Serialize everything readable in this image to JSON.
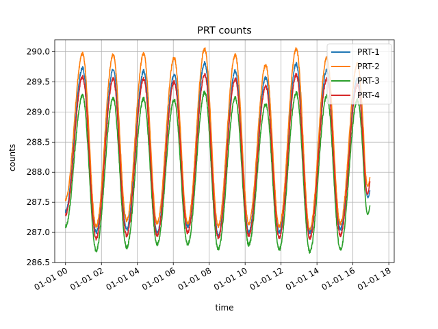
{
  "chart_data": {
    "type": "line",
    "title": "PRT counts",
    "xlabel": "time",
    "ylabel": "counts",
    "xlim_hours": [
      -0.6,
      18.3
    ],
    "ylim": [
      286.5,
      290.2
    ],
    "x_ticks": [
      {
        "hour": 0,
        "label": "01-01 00"
      },
      {
        "hour": 2,
        "label": "01-01 02"
      },
      {
        "hour": 4,
        "label": "01-01 04"
      },
      {
        "hour": 6,
        "label": "01-01 06"
      },
      {
        "hour": 8,
        "label": "01-01 08"
      },
      {
        "hour": 10,
        "label": "01-01 10"
      },
      {
        "hour": 12,
        "label": "01-01 12"
      },
      {
        "hour": 14,
        "label": "01-01 14"
      },
      {
        "hour": 16,
        "label": "01-01 16"
      },
      {
        "hour": 18,
        "label": "01-01 18"
      }
    ],
    "y_ticks": [
      {
        "value": 286.5,
        "label": "286.5"
      },
      {
        "value": 287.0,
        "label": "287.0"
      },
      {
        "value": 287.5,
        "label": "287.5"
      },
      {
        "value": 288.0,
        "label": "288.0"
      },
      {
        "value": 288.5,
        "label": "288.5"
      },
      {
        "value": 289.0,
        "label": "289.0"
      },
      {
        "value": 289.5,
        "label": "289.5"
      },
      {
        "value": 290.0,
        "label": "290.0"
      }
    ],
    "grid": true,
    "legend_position": "top-right",
    "cycle_period_hours": 1.7,
    "series": [
      {
        "name": "PRT-1",
        "color": "#1f77b4",
        "peaks": [
          289.73,
          289.7,
          289.68,
          289.62,
          289.82,
          289.68,
          289.57,
          289.8,
          289.7,
          289.55
        ],
        "troughs": [
          287.35,
          287.0,
          287.05,
          287.0,
          287.1,
          286.95,
          287.0,
          287.0,
          287.0,
          287.05
        ],
        "end": 287.7
      },
      {
        "name": "PRT-2",
        "color": "#ff7f0e",
        "peaks": [
          289.97,
          289.95,
          289.97,
          289.9,
          290.05,
          289.95,
          289.78,
          290.05,
          289.9,
          289.8
        ],
        "troughs": [
          287.55,
          287.1,
          287.2,
          287.15,
          287.15,
          287.1,
          287.15,
          287.1,
          287.05,
          287.15
        ],
        "end": 287.92
      },
      {
        "name": "PRT-3",
        "color": "#2ca02c",
        "peaks": [
          289.27,
          289.23,
          289.22,
          289.2,
          289.33,
          289.23,
          289.13,
          289.32,
          289.27,
          289.2
        ],
        "troughs": [
          287.1,
          286.7,
          286.75,
          286.8,
          286.8,
          286.72,
          286.8,
          286.72,
          286.68,
          286.72
        ],
        "end": 287.45
      },
      {
        "name": "PRT-4",
        "color": "#d62728",
        "peaks": [
          289.58,
          289.55,
          289.55,
          289.5,
          289.62,
          289.55,
          289.42,
          289.62,
          289.55,
          289.45
        ],
        "troughs": [
          287.3,
          286.9,
          286.95,
          286.95,
          287.0,
          286.9,
          286.95,
          286.92,
          286.9,
          286.95
        ],
        "end": 287.85
      }
    ]
  }
}
